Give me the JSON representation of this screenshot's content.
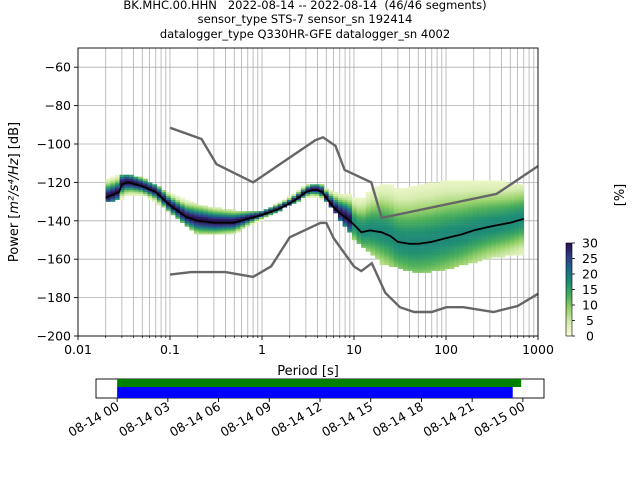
{
  "title_lines": [
    "BK.MHC.00.HHN   2022-08-14 -- 2022-08-14  (46/46 segments)",
    "sensor_type STS-7 sensor_sn 192414",
    "datalogger_type Q330HR-GFE datalogger_sn 4002"
  ],
  "chart_data": [
    {
      "type": "heatmap",
      "xlabel": "Period [s]",
      "ylabel_prefix": "Power [",
      "ylabel_math": "m²/s⁴/Hz",
      "ylabel_suffix": "] [dB]",
      "xscale": "log",
      "xlim": [
        0.01,
        1000
      ],
      "ylim": [
        -200,
        -50
      ],
      "x_ticks": [
        0.01,
        0.1,
        1,
        10,
        100,
        1000
      ],
      "x_tick_labels": [
        "0.01",
        "0.1",
        "1",
        "10",
        "100",
        "1000"
      ],
      "y_ticks": [
        -200,
        -180,
        -160,
        -140,
        -120,
        -100,
        -80,
        -60
      ],
      "y_tick_labels": [
        "−200",
        "−180",
        "−160",
        "−140",
        "−120",
        "−100",
        "−80",
        "−60"
      ],
      "grid": true,
      "colorbar": {
        "label": "[%]",
        "range": [
          0,
          30
        ],
        "ticks": [
          0,
          5,
          10,
          15,
          20,
          25,
          30
        ],
        "colors": [
          "#fbfcd8",
          "#d6ecb0",
          "#9ad26c",
          "#4caf5a",
          "#1f8f73",
          "#1d6a88",
          "#2e3b87",
          "#2a0f4e"
        ]
      },
      "high_noise_model": {
        "x": [
          0.1,
          0.22,
          0.32,
          0.8,
          3.8,
          4.6,
          6.3,
          7.9,
          15.4,
          20,
          354.8,
          1000
        ],
        "y": [
          -91.5,
          -97.4,
          -110.5,
          -120.0,
          -98.0,
          -96.5,
          -101.0,
          -113.5,
          -120.0,
          -138.5,
          -126.0,
          -111.5
        ]
      },
      "low_noise_model": {
        "x": [
          0.1,
          0.17,
          0.4,
          0.8,
          1.26,
          2,
          4.3,
          5,
          6,
          10,
          12,
          15.6,
          21.9,
          31.6,
          45,
          70,
          101,
          154,
          328,
          600,
          1000
        ],
        "y": [
          -168.0,
          -166.7,
          -166.7,
          -169.2,
          -163.7,
          -148.6,
          -141.1,
          -141.1,
          -149.0,
          -163.8,
          -166.2,
          -162.1,
          -177.5,
          -185.0,
          -187.5,
          -187.5,
          -185.0,
          -185.0,
          -187.5,
          -184.4,
          -178.0
        ]
      },
      "mode_curve": {
        "x": [
          0.02,
          0.025,
          0.028,
          0.03,
          0.035,
          0.05,
          0.07,
          0.1,
          0.15,
          0.2,
          0.3,
          0.5,
          0.7,
          1,
          1.5,
          2,
          2.5,
          3,
          3.5,
          4,
          4.5,
          5,
          6,
          7,
          8,
          9,
          10,
          12,
          15,
          20,
          25,
          30,
          40,
          50,
          70,
          100,
          150,
          200,
          300,
          500,
          700
        ],
        "y": [
          -128,
          -126,
          -125,
          -121,
          -120,
          -122,
          -125,
          -132,
          -138,
          -140,
          -141,
          -141,
          -139,
          -137,
          -134,
          -131,
          -128,
          -125,
          -124,
          -124,
          -125,
          -128,
          -133,
          -136,
          -138,
          -140,
          -142,
          -146,
          -145,
          -146,
          -148,
          -151,
          -152,
          -152,
          -151,
          -149,
          -147,
          -145,
          -143,
          -141,
          -139
        ]
      },
      "upper_spread": {
        "x": [
          0.03,
          0.05,
          0.1,
          0.2,
          0.5,
          1,
          3,
          5,
          10,
          20,
          50,
          100,
          300,
          700
        ],
        "y": [
          -116,
          -118,
          -126,
          -132,
          -135,
          -136,
          -122,
          -122,
          -125,
          -118,
          -113,
          -112,
          -118,
          -122
        ]
      },
      "lower_spread": {
        "x": [
          0.02,
          0.05,
          0.1,
          0.2,
          0.5,
          1,
          3,
          5,
          10,
          20,
          50,
          100,
          300,
          700
        ],
        "y": [
          -131,
          -127,
          -136,
          -148,
          -147,
          -140,
          -128,
          -130,
          -150,
          -163,
          -168,
          -166,
          -160,
          -158
        ]
      }
    },
    {
      "type": "timeline",
      "x_tick_labels": [
        "08-14 00",
        "08-14 03",
        "08-14 06",
        "08-14 09",
        "08-14 12",
        "08-14 15",
        "08-14 18",
        "08-14 21",
        "08-15 00"
      ],
      "data_start_hour": 0.0,
      "data_end_hour": 23.9,
      "psd_start_hour": 0.0,
      "psd_end_hour": 23.4,
      "xlim_hours": [
        -1.25,
        25.25
      ],
      "data_color": "#008000",
      "psd_color": "#0000ff"
    }
  ]
}
